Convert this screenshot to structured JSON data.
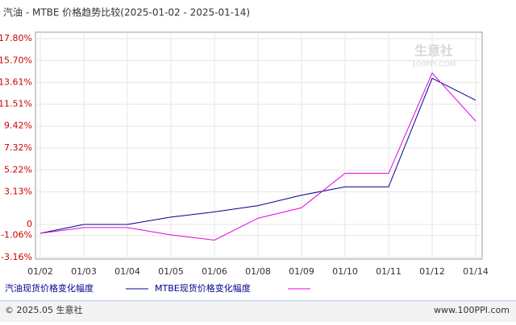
{
  "chart_data": {
    "type": "line",
    "title": "汽油 - MTBE 价格趋势比较(2025-01-02 - 2025-01-14)",
    "categories": [
      "01/02",
      "01/03",
      "01/04",
      "01/05",
      "01/06",
      "01/08",
      "01/09",
      "01/10",
      "01/11",
      "01/12",
      "01/14"
    ],
    "series": [
      {
        "name": "汽油现货价格变化幅度",
        "color": "#00008b",
        "values": [
          -0.85,
          0,
          0,
          0.7,
          1.2,
          1.8,
          2.8,
          3.6,
          3.6,
          14.0,
          11.9
        ]
      },
      {
        "name": "MTBE现货价格变化幅度",
        "color": "#e600e6",
        "values": [
          -0.85,
          -0.3,
          -0.3,
          -1.0,
          -1.5,
          0.6,
          1.6,
          4.9,
          4.9,
          14.5,
          9.9
        ]
      }
    ],
    "ylim": [
      -3.16,
      17.8
    ],
    "yticks": [
      {
        "value": -3.16,
        "label": "-3.16%"
      },
      {
        "value": -1.06,
        "label": "-1.06%"
      },
      0,
      {
        "value": 3.13,
        "label": "3.13%"
      },
      {
        "value": 5.22,
        "label": "5.22%"
      },
      {
        "value": 7.32,
        "label": "7.32%"
      },
      {
        "value": 9.42,
        "label": "9.42%"
      },
      {
        "value": 11.51,
        "label": "11.51%"
      },
      {
        "value": 13.61,
        "label": "13.61%"
      },
      {
        "value": 15.7,
        "label": "15.70%"
      },
      {
        "value": 17.8,
        "label": "17.80%"
      }
    ],
    "grid": true,
    "watermark": [
      "生意社",
      "100PPI.COM"
    ],
    "footer_left": "© 2025.05 生意社",
    "footer_right": "www.100PPI.com"
  }
}
